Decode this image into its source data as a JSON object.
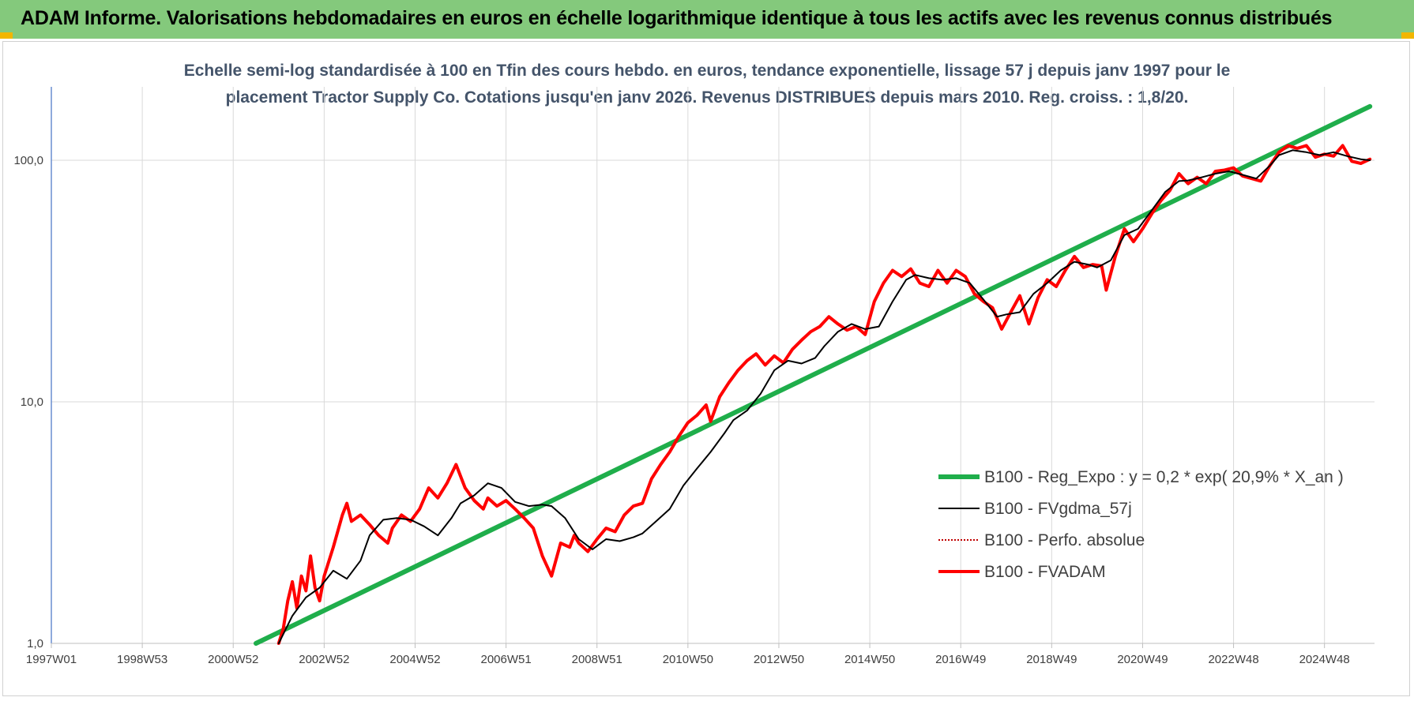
{
  "header": {
    "title": "ADAM Informe. Valorisations hebdomadaires en euros en échelle logarithmique identique à tous les actifs avec les revenus connus distribués"
  },
  "colors": {
    "header_bg": "#84c97c",
    "corner_accent": "#f2b600",
    "reg_expo": "#1fae4b",
    "fvgdma": "#000000",
    "perfo": "#c00000",
    "fvadam": "#ff0000",
    "grid": "#d9d9d9",
    "axis": "#4472c4"
  },
  "chart_data": {
    "type": "line",
    "subtitle_lines": [
      "Echelle semi-log standardisée à 100 en Tfin des cours hebdo. en euros, tendance exponentielle, lissage 57 j depuis janv 1997 pour le",
      "placement Tractor Supply Co. Cotations jusqu'en janv 2026.  Revenus DISTRIBUES depuis mars 2010. Reg. croiss. : 1,8/20."
    ],
    "y_scale": "log",
    "ylim": [
      1,
      180
    ],
    "xlim": [
      1997.0,
      2026.1
    ],
    "y_ticks": [
      {
        "value": 1,
        "label": "1,0"
      },
      {
        "value": 10,
        "label": "10,0"
      },
      {
        "value": 100,
        "label": "100,0"
      }
    ],
    "x_ticks": [
      {
        "value": 1997.0,
        "label": "1997W01"
      },
      {
        "value": 1999.0,
        "label": "1998W53"
      },
      {
        "value": 2001.0,
        "label": "2000W52"
      },
      {
        "value": 2003.0,
        "label": "2002W52"
      },
      {
        "value": 2005.0,
        "label": "2004W52"
      },
      {
        "value": 2007.0,
        "label": "2006W51"
      },
      {
        "value": 2009.0,
        "label": "2008W51"
      },
      {
        "value": 2011.0,
        "label": "2010W50"
      },
      {
        "value": 2013.0,
        "label": "2012W50"
      },
      {
        "value": 2015.0,
        "label": "2014W50"
      },
      {
        "value": 2017.0,
        "label": "2016W49"
      },
      {
        "value": 2019.0,
        "label": "2018W49"
      },
      {
        "value": 2021.0,
        "label": "2020W49"
      },
      {
        "value": 2023.0,
        "label": "2022W48"
      },
      {
        "value": 2025.0,
        "label": "2024W48"
      }
    ],
    "grid": true,
    "legend_position": "right",
    "series": [
      {
        "name": "B100 - Reg_Expo : y = 0,2 * exp( 20,9% *  X_an )",
        "kind": "reg",
        "x": [
          2001.5,
          2026.0
        ],
        "y": [
          1.0,
          167.0
        ]
      },
      {
        "name": "B100 - FVgdma_57j",
        "kind": "smooth",
        "x": [
          2002.0,
          2002.3,
          2002.6,
          2002.9,
          2003.2,
          2003.5,
          2003.8,
          2004.0,
          2004.3,
          2004.6,
          2004.9,
          2005.2,
          2005.5,
          2005.8,
          2006.0,
          2006.3,
          2006.6,
          2006.9,
          2007.2,
          2007.5,
          2007.8,
          2008.0,
          2008.3,
          2008.6,
          2008.9,
          2009.2,
          2009.5,
          2009.8,
          2010.0,
          2010.3,
          2010.6,
          2010.9,
          2011.2,
          2011.5,
          2011.8,
          2012.0,
          2012.3,
          2012.6,
          2012.9,
          2013.2,
          2013.5,
          2013.8,
          2014.0,
          2014.3,
          2014.6,
          2014.9,
          2015.2,
          2015.5,
          2015.8,
          2016.0,
          2016.3,
          2016.6,
          2016.9,
          2017.2,
          2017.5,
          2017.8,
          2018.0,
          2018.3,
          2018.6,
          2018.9,
          2019.2,
          2019.5,
          2019.8,
          2020.0,
          2020.3,
          2020.6,
          2020.9,
          2021.2,
          2021.5,
          2021.8,
          2022.0,
          2022.3,
          2022.6,
          2022.9,
          2023.2,
          2023.5,
          2023.8,
          2024.0,
          2024.3,
          2024.6,
          2024.9,
          2025.2,
          2025.5,
          2025.8,
          2026.0
        ],
        "y": [
          1.0,
          1.3,
          1.55,
          1.7,
          2.0,
          1.85,
          2.2,
          2.8,
          3.25,
          3.3,
          3.25,
          3.05,
          2.8,
          3.3,
          3.8,
          4.1,
          4.6,
          4.4,
          3.85,
          3.7,
          3.75,
          3.7,
          3.3,
          2.7,
          2.45,
          2.7,
          2.65,
          2.75,
          2.85,
          3.2,
          3.6,
          4.5,
          5.3,
          6.2,
          7.4,
          8.4,
          9.2,
          10.8,
          13.5,
          14.8,
          14.4,
          15.2,
          17.0,
          19.5,
          21.0,
          20.0,
          20.5,
          26.0,
          32.0,
          33.5,
          32.5,
          32.0,
          32.5,
          31.0,
          26.5,
          22.5,
          23.0,
          23.5,
          28.0,
          31.0,
          35.0,
          38.0,
          37.0,
          36.0,
          38.5,
          49.0,
          52.0,
          62.0,
          74.0,
          82.0,
          82.5,
          85.0,
          88.0,
          90.0,
          87.0,
          84.0,
          95.0,
          105.0,
          110.0,
          108.0,
          105.0,
          108.0,
          104.0,
          101.0,
          100.0
        ]
      },
      {
        "name": "B100 - Perfo. absolue",
        "kind": "perfo",
        "x": [],
        "y": []
      },
      {
        "name": "B100 - FVADAM",
        "kind": "main",
        "x": [
          2002.0,
          2002.1,
          2002.2,
          2002.3,
          2002.4,
          2002.5,
          2002.6,
          2002.7,
          2002.8,
          2002.9,
          2003.0,
          2003.2,
          2003.4,
          2003.5,
          2003.6,
          2003.8,
          2004.0,
          2004.2,
          2004.4,
          2004.5,
          2004.7,
          2004.9,
          2005.1,
          2005.3,
          2005.5,
          2005.7,
          2005.9,
          2006.1,
          2006.3,
          2006.5,
          2006.6,
          2006.8,
          2007.0,
          2007.2,
          2007.4,
          2007.6,
          2007.8,
          2008.0,
          2008.2,
          2008.4,
          2008.5,
          2008.6,
          2008.8,
          2009.0,
          2009.2,
          2009.4,
          2009.6,
          2009.8,
          2010.0,
          2010.2,
          2010.4,
          2010.6,
          2010.8,
          2011.0,
          2011.2,
          2011.4,
          2011.5,
          2011.7,
          2011.9,
          2012.1,
          2012.3,
          2012.5,
          2012.7,
          2012.9,
          2013.1,
          2013.3,
          2013.5,
          2013.7,
          2013.9,
          2014.1,
          2014.3,
          2014.5,
          2014.7,
          2014.9,
          2015.1,
          2015.3,
          2015.5,
          2015.7,
          2015.9,
          2016.1,
          2016.3,
          2016.5,
          2016.7,
          2016.9,
          2017.1,
          2017.3,
          2017.5,
          2017.7,
          2017.9,
          2018.1,
          2018.3,
          2018.5,
          2018.7,
          2018.9,
          2019.1,
          2019.3,
          2019.5,
          2019.7,
          2019.9,
          2020.1,
          2020.2,
          2020.4,
          2020.6,
          2020.8,
          2021.0,
          2021.2,
          2021.4,
          2021.6,
          2021.8,
          2022.0,
          2022.2,
          2022.4,
          2022.6,
          2022.8,
          2023.0,
          2023.2,
          2023.4,
          2023.6,
          2023.8,
          2024.0,
          2024.2,
          2024.4,
          2024.6,
          2024.8,
          2025.0,
          2025.2,
          2025.4,
          2025.6,
          2025.8,
          2026.0
        ],
        "y": [
          1.0,
          1.15,
          1.5,
          1.8,
          1.4,
          1.9,
          1.65,
          2.3,
          1.7,
          1.5,
          1.9,
          2.5,
          3.4,
          3.8,
          3.2,
          3.4,
          3.1,
          2.8,
          2.6,
          3.0,
          3.4,
          3.2,
          3.6,
          4.4,
          4.0,
          4.6,
          5.5,
          4.4,
          3.9,
          3.6,
          4.0,
          3.7,
          3.9,
          3.6,
          3.3,
          3.0,
          2.3,
          1.9,
          2.6,
          2.5,
          2.8,
          2.6,
          2.4,
          2.7,
          3.0,
          2.9,
          3.4,
          3.7,
          3.8,
          4.8,
          5.5,
          6.2,
          7.2,
          8.2,
          8.8,
          9.7,
          8.3,
          10.5,
          12.0,
          13.5,
          14.8,
          15.8,
          14.2,
          15.5,
          14.5,
          16.5,
          18.0,
          19.5,
          20.5,
          22.5,
          21.0,
          19.8,
          20.5,
          19.0,
          26.0,
          31.0,
          35.0,
          33.0,
          35.5,
          31.0,
          30.0,
          35.0,
          31.0,
          35.0,
          33.0,
          28.0,
          26.0,
          24.5,
          20.0,
          23.5,
          27.5,
          21.0,
          27.0,
          32.0,
          30.0,
          35.0,
          40.0,
          36.0,
          37.0,
          36.5,
          29.0,
          40.0,
          52.0,
          46.0,
          52.0,
          60.0,
          68.0,
          75.0,
          88.0,
          80.0,
          85.0,
          80.0,
          90.0,
          91.0,
          93.0,
          86.0,
          84.0,
          82.0,
          95.0,
          108.0,
          115.0,
          112.0,
          115.0,
          103.0,
          106.0,
          104.0,
          115.0,
          99.0,
          97.0,
          101.0
        ]
      }
    ]
  }
}
